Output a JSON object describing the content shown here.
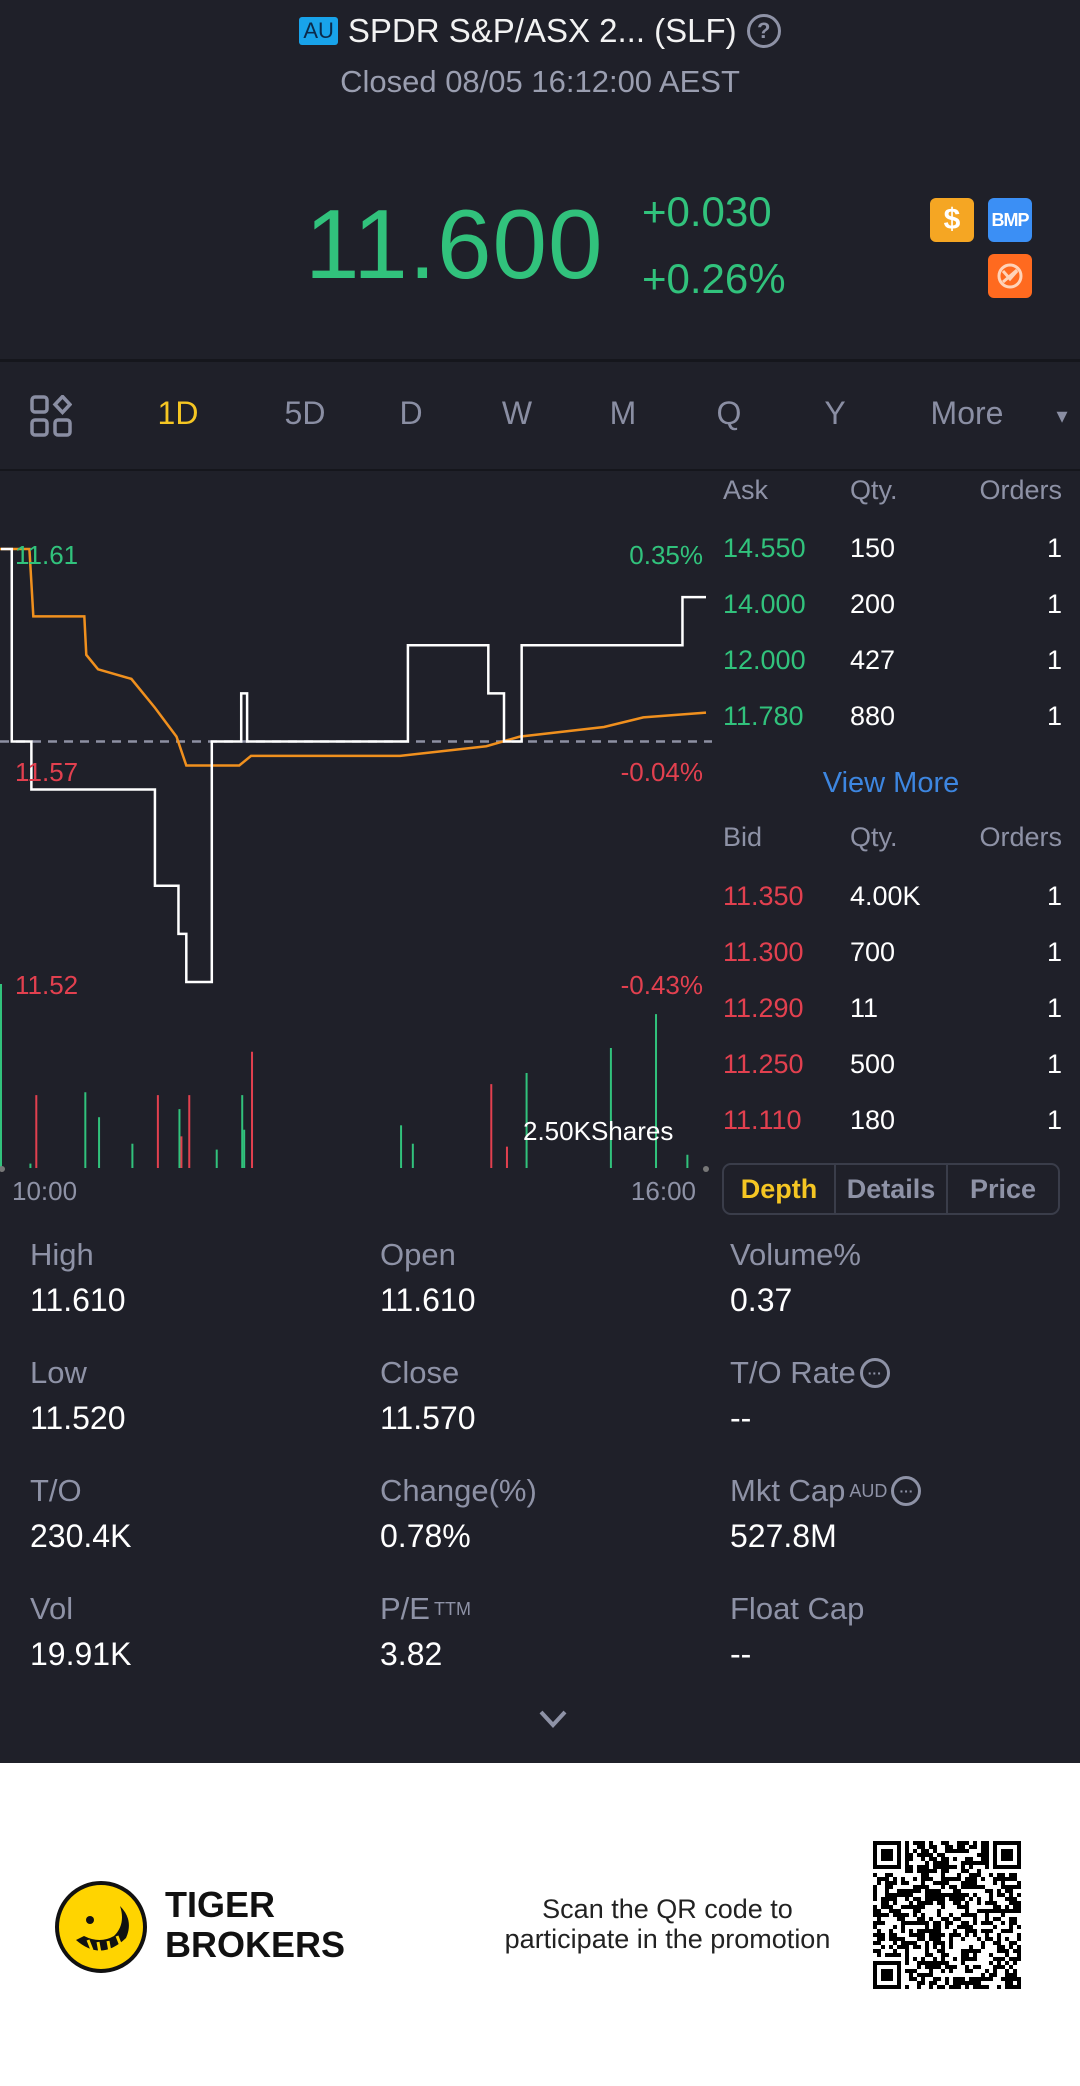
{
  "header": {
    "market_badge": "AU",
    "title": "SPDR S&P/ASX 2... (SLF)",
    "help_icon": "question-circle-icon",
    "status": "Closed 08/05 16:12:00 AEST"
  },
  "quote": {
    "price": "11.600",
    "change": "+0.030",
    "change_pct": "+0.26%",
    "badges": [
      {
        "icon": "dollar-icon",
        "label": "$",
        "color": "#f5a623"
      },
      {
        "icon": "bmp-icon",
        "label": "BMP",
        "color": "#3b8ff5"
      },
      {
        "icon": "no-trade-icon",
        "label": "",
        "color": "#ff6a1f"
      }
    ]
  },
  "tabs": {
    "layout_icon": "grid-layout-icon",
    "items": [
      "1D",
      "5D",
      "D",
      "W",
      "M",
      "Q",
      "Y",
      "More"
    ],
    "active": "1D",
    "more_caret": "▾"
  },
  "colors": {
    "up": "#31c27c",
    "down": "#e2404f",
    "price_line": "#ffffff",
    "avg_line": "#f0901e",
    "accent": "#f5c623",
    "link": "#3d86e0"
  },
  "chart_data": {
    "type": "line",
    "y_labels_left": [
      "11.61",
      "11.57",
      "11.52"
    ],
    "y_labels_right": [
      "0.35%",
      "-0.04%",
      "-0.43%"
    ],
    "ylim": [
      11.52,
      11.61
    ],
    "prev_close": 11.57,
    "x_labels": [
      "10:00",
      "16:00"
    ],
    "volume_label": "2.50KShares",
    "price_series": [
      [
        "10:00",
        11.61
      ],
      [
        "10:06",
        11.61
      ],
      [
        "10:06",
        11.57
      ],
      [
        "10:16",
        11.57
      ],
      [
        "10:16",
        11.56
      ],
      [
        "11:19",
        11.56
      ],
      [
        "11:19",
        11.54
      ],
      [
        "11:31",
        11.54
      ],
      [
        "11:31",
        11.53
      ],
      [
        "11:35",
        11.53
      ],
      [
        "11:35",
        11.52
      ],
      [
        "11:48",
        11.52
      ],
      [
        "11:48",
        11.57
      ],
      [
        "12:03",
        11.57
      ],
      [
        "12:03",
        11.58
      ],
      [
        "12:06",
        11.58
      ],
      [
        "12:06",
        11.57
      ],
      [
        "13:28",
        11.57
      ],
      [
        "13:28",
        11.59
      ],
      [
        "14:09",
        11.59
      ],
      [
        "14:09",
        11.58
      ],
      [
        "14:17",
        11.58
      ],
      [
        "14:17",
        11.57
      ],
      [
        "14:26",
        11.57
      ],
      [
        "14:26",
        11.59
      ],
      [
        "15:48",
        11.59
      ],
      [
        "15:48",
        11.6
      ],
      [
        "16:00",
        11.6
      ]
    ],
    "avg_series": [
      [
        "10:00",
        11.61
      ],
      [
        "10:15",
        11.61
      ],
      [
        "10:17",
        11.596
      ],
      [
        "10:43",
        11.596
      ],
      [
        "10:44",
        11.588
      ],
      [
        "10:50",
        11.585
      ],
      [
        "11:07",
        11.583
      ],
      [
        "11:19",
        11.577
      ],
      [
        "11:30",
        11.571
      ],
      [
        "11:35",
        11.565
      ],
      [
        "12:02",
        11.565
      ],
      [
        "12:08",
        11.567
      ],
      [
        "13:24",
        11.567
      ],
      [
        "14:08",
        11.569
      ],
      [
        "14:25",
        11.571
      ],
      [
        "15:08",
        11.573
      ],
      [
        "15:28",
        11.575
      ],
      [
        "16:00",
        11.576
      ]
    ],
    "volume_max": 2500,
    "volume": [
      [
        "10:00",
        2500,
        "up"
      ],
      [
        "10:15",
        60,
        "up"
      ],
      [
        "10:18",
        990,
        "down"
      ],
      [
        "10:43",
        1030,
        "up"
      ],
      [
        "10:50",
        690,
        "up"
      ],
      [
        "11:07",
        330,
        "up"
      ],
      [
        "11:20",
        990,
        "down"
      ],
      [
        "11:31",
        800,
        "up"
      ],
      [
        "11:32",
        430,
        "down"
      ],
      [
        "11:36",
        990,
        "down"
      ],
      [
        "11:50",
        250,
        "up"
      ],
      [
        "12:03",
        990,
        "up"
      ],
      [
        "12:04",
        520,
        "up"
      ],
      [
        "12:08",
        1580,
        "down"
      ],
      [
        "13:24",
        580,
        "up"
      ],
      [
        "13:30",
        330,
        "up"
      ],
      [
        "14:10",
        1140,
        "down"
      ],
      [
        "14:18",
        290,
        "down"
      ],
      [
        "14:28",
        1290,
        "up"
      ],
      [
        "15:11",
        1630,
        "up"
      ],
      [
        "15:34",
        2090,
        "up"
      ],
      [
        "15:50",
        180,
        "up"
      ]
    ]
  },
  "order_book": {
    "ask_headers": [
      "Ask",
      "Qty.",
      "Orders"
    ],
    "asks": [
      [
        "14.550",
        "150",
        "1"
      ],
      [
        "14.000",
        "200",
        "1"
      ],
      [
        "12.000",
        "427",
        "1"
      ],
      [
        "11.780",
        "880",
        "1"
      ]
    ],
    "view_more": "View More",
    "bid_headers": [
      "Bid",
      "Qty.",
      "Orders"
    ],
    "bids": [
      [
        "11.350",
        "4.00K",
        "1"
      ],
      [
        "11.300",
        "700",
        "1"
      ],
      [
        "11.290",
        "11",
        "1"
      ],
      [
        "11.250",
        "500",
        "1"
      ],
      [
        "11.110",
        "180",
        "1"
      ]
    ],
    "segments": [
      "Depth",
      "Details",
      "Price"
    ],
    "active_segment": "Depth"
  },
  "stats": [
    {
      "label": "High",
      "value": "11.610"
    },
    {
      "label": "Open",
      "value": "11.610"
    },
    {
      "label": "Volume%",
      "value": "0.37"
    },
    {
      "label": "Low",
      "value": "11.520"
    },
    {
      "label": "Close",
      "value": "11.570"
    },
    {
      "label": "T/O Rate",
      "value": "--",
      "info": true
    },
    {
      "label": "T/O",
      "value": "230.4K"
    },
    {
      "label": "Change(%)",
      "value": "0.78%"
    },
    {
      "label": "Mkt Cap",
      "sup": "AUD",
      "value": "527.8M",
      "info": true
    },
    {
      "label": "Vol",
      "value": "19.91K"
    },
    {
      "label": "P/E",
      "sup": "TTM",
      "value": "3.82"
    },
    {
      "label": "Float Cap",
      "value": "--"
    }
  ],
  "expand_icon": "chevron-down-icon",
  "footer": {
    "brand_line1": "TIGER",
    "brand_line2": "BROKERS",
    "promo_line1": "Scan the QR code to",
    "promo_line2": "participate in the promotion"
  }
}
